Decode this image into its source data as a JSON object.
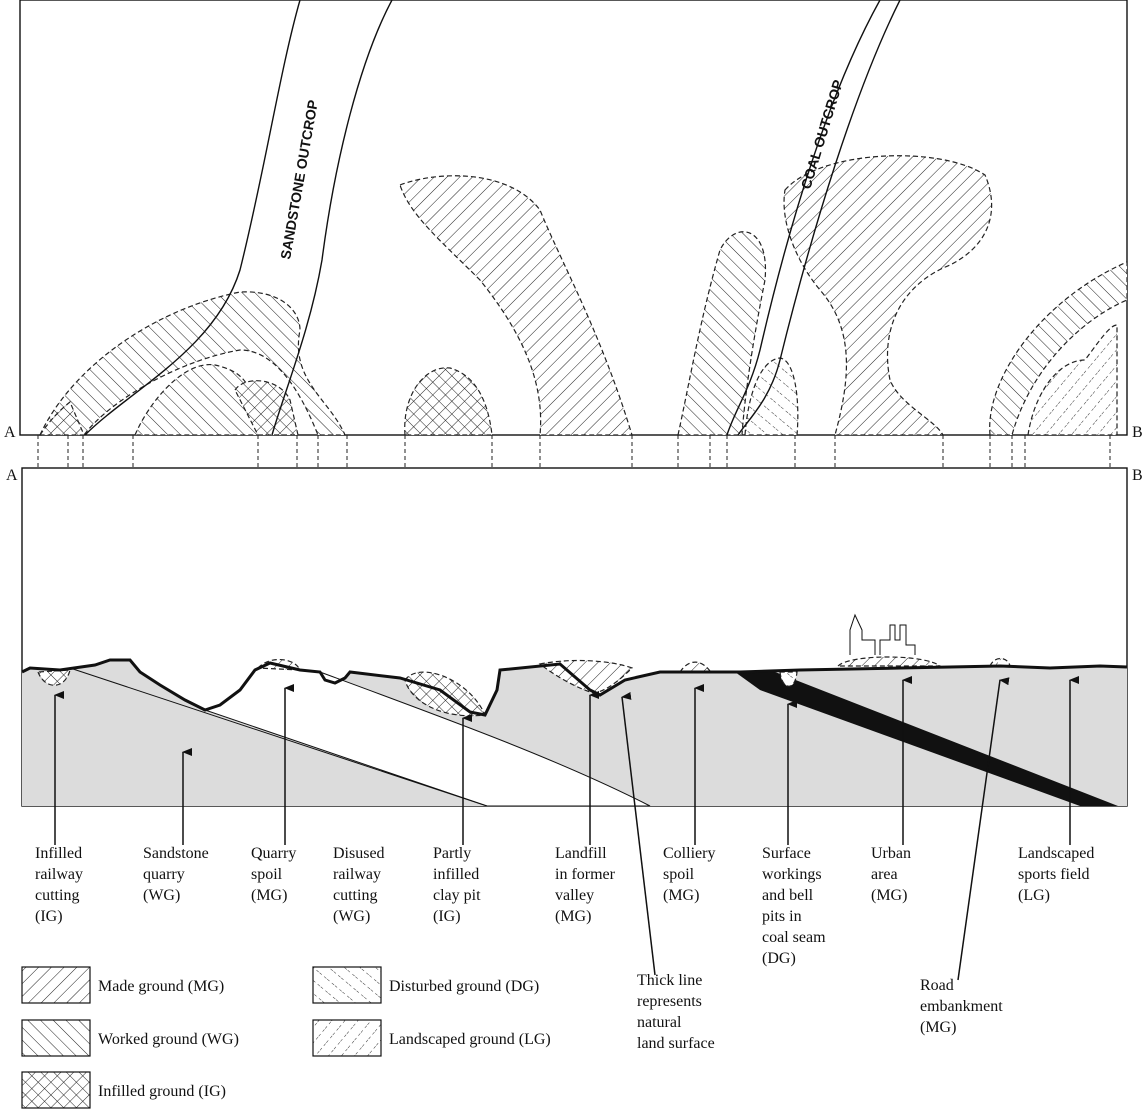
{
  "map": {
    "start": "A",
    "end": "B",
    "outcrops": [
      "SANDSTONE OUTCROP",
      "COAL OUTCROP"
    ]
  },
  "section": {
    "start": "A",
    "end": "B"
  },
  "annotations": [
    {
      "lines": [
        "Infilled",
        "railway",
        "cutting",
        "(IG)"
      ]
    },
    {
      "lines": [
        "Sandstone",
        "quarry",
        "(WG)"
      ]
    },
    {
      "lines": [
        "Quarry",
        "spoil",
        "(MG)"
      ]
    },
    {
      "lines": [
        "Disused",
        "railway",
        "cutting",
        "(WG)"
      ]
    },
    {
      "lines": [
        "Partly",
        "infilled",
        "clay pit",
        "(IG)"
      ]
    },
    {
      "lines": [
        "Landfill",
        "in former",
        "valley",
        "(MG)"
      ]
    },
    {
      "lines": [
        "Thick line",
        "represents",
        "natural",
        "land surface"
      ]
    },
    {
      "lines": [
        "Colliery",
        "spoil",
        "(MG)"
      ]
    },
    {
      "lines": [
        "Surface",
        "workings",
        "and bell",
        "pits in",
        "coal seam",
        "(DG)"
      ]
    },
    {
      "lines": [
        "Urban",
        "area",
        "(MG)"
      ]
    },
    {
      "lines": [
        "Road",
        "embankment",
        "(MG)"
      ]
    },
    {
      "lines": [
        "Landscaped",
        "sports field",
        "(LG)"
      ]
    }
  ],
  "legend": [
    {
      "label": "Made ground (MG)"
    },
    {
      "label": "Worked ground (WG)"
    },
    {
      "label": "Infilled ground (IG)"
    },
    {
      "label": "Disturbed ground (DG)"
    },
    {
      "label": "Landscaped ground (LG)"
    }
  ]
}
